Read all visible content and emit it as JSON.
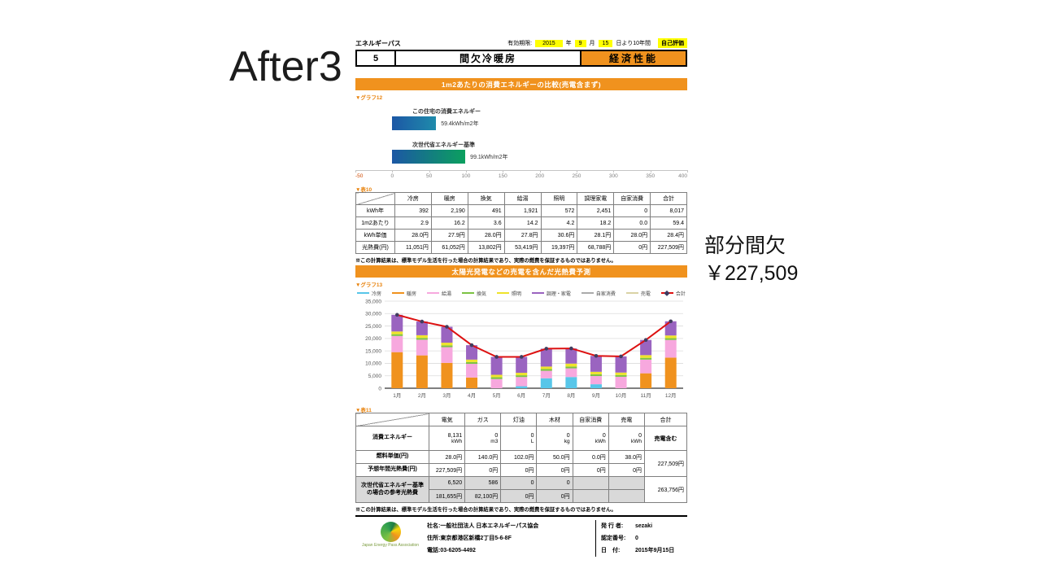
{
  "slide": {
    "title_left": "After3",
    "annotation": {
      "line1": "部分間欠",
      "line2": "￥227,509"
    }
  },
  "doc": {
    "header": {
      "brand": "エネルギーパス",
      "validity_label": "有効期限:",
      "year": "2015",
      "year_suffix": "年",
      "month": "9",
      "month_suffix": "月",
      "day": "15",
      "day_suffix": "日より10年間",
      "self_eval": "自己評価",
      "number": "5",
      "mode": "間欠冷暖房",
      "category": "経済性能"
    },
    "section1": {
      "banner": "1m2あたりの消費エネルギーの比較(売電含まず)",
      "graph_tag": "▼グラフ12",
      "table_tag": "▼表10"
    },
    "table10": {
      "headers": [
        "",
        "冷房",
        "暖房",
        "換気",
        "給湯",
        "照明",
        "調理家電",
        "自家消費",
        "合計"
      ],
      "rows": [
        {
          "label": "kWh年",
          "cells": [
            "392",
            "2,190",
            "491",
            "1,921",
            "572",
            "2,451",
            "0",
            "8,017"
          ]
        },
        {
          "label": "1m2あたり",
          "cells": [
            "2.9",
            "16.2",
            "3.6",
            "14.2",
            "4.2",
            "18.2",
            "0.0",
            "59.4"
          ]
        },
        {
          "label": "kWh単価",
          "cells": [
            "28.0円",
            "27.9円",
            "28.0円",
            "27.8円",
            "30.6円",
            "28.1円",
            "28.0円",
            "28.4円"
          ]
        },
        {
          "label": "光熱費(円)",
          "cells": [
            "11,051円",
            "61,052円",
            "13,802円",
            "53,419円",
            "19,397円",
            "68,788円",
            "0円",
            "227,509円"
          ]
        }
      ]
    },
    "note": "※この計算結果は、標準モデル生活を行った場合の計算結果であり、実際の燃費を保証するものではありません。",
    "section2": {
      "banner": "太陽光発電などの売電を含んだ光熱費予測",
      "graph_tag": "▼グラフ13",
      "table_tag": "▼表11"
    },
    "table11": {
      "headers": [
        "",
        "電気",
        "ガス",
        "灯油",
        "木材",
        "自家消費",
        "売電",
        "合計"
      ],
      "consumption": {
        "label": "消費エネルギー",
        "values": [
          "8,131",
          "0",
          "0",
          "0",
          "0",
          "0"
        ],
        "units": [
          "kWh",
          "m3",
          "L",
          "kg",
          "kWh",
          "kWh"
        ],
        "total": "売電含む"
      },
      "unit_price": {
        "label": "燃料単価(円)",
        "cells": [
          "28.0円",
          "140.0円",
          "102.0円",
          "50.0円",
          "0.0円",
          "38.0円"
        ],
        "total": "227,509円"
      },
      "annual": {
        "label": "予想年間光熱費(円)",
        "cells": [
          "227,509円",
          "0円",
          "0円",
          "0円",
          "0円",
          "0円"
        ]
      },
      "reference": {
        "label": "次世代省エネルギー基準の場合の参考光熱費",
        "row1": [
          "6,520",
          "586",
          "0",
          "0",
          "",
          ""
        ],
        "row2": [
          "181,655円",
          "82,100円",
          "0円",
          "0円",
          "",
          ""
        ],
        "total": "263,756円"
      }
    },
    "footer": {
      "logo_caption": "Japan Energy Pass Association",
      "company": "社名:一般社団法人 日本エネルギーパス協会",
      "address": "住所:東京都港区新橋2丁目5-6-8F",
      "phone": "電話:03-6205-4492",
      "issuer_label": "発 行 者:",
      "issuer": "sezaki",
      "cert_label": "認定番号:",
      "cert": "0",
      "date_label": "日　付:",
      "date": "2015年9月15日"
    }
  },
  "chart_data": [
    {
      "type": "bar",
      "orientation": "horizontal",
      "title": "1m2あたりの消費エネルギーの比較(売電含まず)",
      "bars": [
        {
          "label": "この住宅の消費エネルギー",
          "value": 59.4,
          "value_label": "59.4kWh/m2年"
        },
        {
          "label": "次世代省エネルギー基準",
          "value": 99.1,
          "value_label": "99.1kWh/m2年"
        }
      ],
      "xlim": [
        -50,
        400
      ],
      "axis_ticks": [
        "-50",
        "0",
        "50",
        "100",
        "150",
        "200",
        "250",
        "300",
        "350",
        "400"
      ],
      "unit": "kWh/m2年",
      "bar_colors": [
        "#1c57a5→#1f8bab",
        "#1c57a5→#0ba05e"
      ]
    },
    {
      "type": "bar",
      "subtype": "stacked-with-line",
      "title": "太陽光発電などの売電を含んだ光熱費予測",
      "categories": [
        "1月",
        "2月",
        "3月",
        "4月",
        "5月",
        "6月",
        "7月",
        "8月",
        "9月",
        "10月",
        "11月",
        "12月"
      ],
      "series": [
        {
          "name": "冷房",
          "color": "#58c6e9",
          "values": [
            0,
            0,
            0,
            0,
            0,
            800,
            4000,
            4500,
            1600,
            0,
            0,
            0
          ]
        },
        {
          "name": "暖房",
          "color": "#f0921e",
          "values": [
            14500,
            13200,
            10200,
            4300,
            0,
            0,
            0,
            0,
            0,
            0,
            6000,
            12300
          ]
        },
        {
          "name": "給湯",
          "color": "#f7a8de",
          "values": [
            6500,
            6300,
            6300,
            5500,
            3700,
            3700,
            3000,
            3500,
            3300,
            4600,
            5500,
            7100
          ]
        },
        {
          "name": "換気",
          "color": "#7cc243",
          "values": [
            700,
            700,
            700,
            700,
            700,
            700,
            700,
            700,
            700,
            700,
            700,
            700
          ]
        },
        {
          "name": "照明",
          "color": "#efe32b",
          "values": [
            1100,
            1100,
            1100,
            1000,
            1000,
            1000,
            1000,
            1200,
            1000,
            1000,
            1100,
            1100
          ]
        },
        {
          "name": "調理・家電",
          "color": "#9a64c0",
          "values": [
            6700,
            5500,
            6400,
            5800,
            7200,
            6400,
            7200,
            6100,
            6400,
            6500,
            6100,
            5700
          ]
        },
        {
          "name": "自家消費",
          "color": "#ababab",
          "values": [
            0,
            0,
            0,
            0,
            0,
            0,
            0,
            0,
            0,
            0,
            0,
            0
          ]
        },
        {
          "name": "売電",
          "color": "#d9d3a5",
          "values": [
            0,
            0,
            0,
            0,
            0,
            0,
            0,
            0,
            0,
            0,
            0,
            0
          ]
        }
      ],
      "line_series": {
        "name": "合計",
        "color": "#dd1111",
        "marker_color": "#413d5e",
        "values": [
          29500,
          26800,
          24700,
          17300,
          12600,
          12600,
          15900,
          16000,
          13000,
          12800,
          19400,
          26900
        ]
      },
      "ylim": [
        0,
        35000
      ],
      "yticks": [
        0,
        5000,
        10000,
        15000,
        20000,
        25000,
        30000,
        35000
      ],
      "grid": true,
      "legend_position": "top"
    }
  ]
}
